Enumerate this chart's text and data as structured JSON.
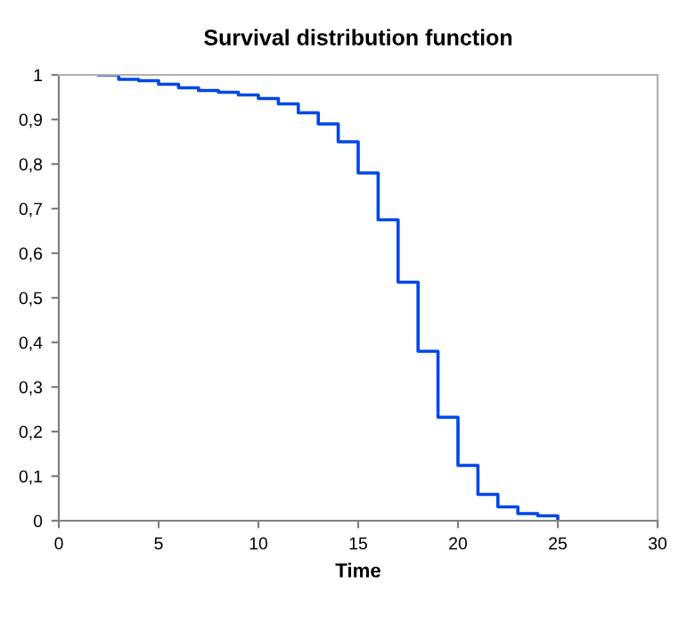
{
  "chart_data": {
    "type": "step",
    "title": "Survival distribution function",
    "xlabel": "Time",
    "x": [
      2,
      3,
      4,
      5,
      6,
      7,
      8,
      9,
      10,
      11,
      12,
      13,
      14,
      15,
      16,
      17,
      18,
      19,
      20,
      21,
      22,
      23,
      24,
      25
    ],
    "series": [
      {
        "color": "#0047e6",
        "values": [
          1.0,
          0.99,
          0.987,
          0.979,
          0.971,
          0.965,
          0.961,
          0.955,
          0.947,
          0.935,
          0.915,
          0.89,
          0.85,
          0.78,
          0.675,
          0.535,
          0.38,
          0.232,
          0.124,
          0.059,
          0.031,
          0.016,
          0.011,
          0
        ]
      }
    ],
    "xlim": [
      0,
      30
    ],
    "xticks": [
      0,
      5,
      10,
      15,
      20,
      25,
      30
    ],
    "ylim": [
      0,
      1
    ],
    "yticks": [
      0,
      {
        "value": 0.1,
        "label": "0,1"
      },
      {
        "value": 0.2,
        "label": "0,2"
      },
      {
        "value": 0.3,
        "label": "0,3"
      },
      {
        "value": 0.4,
        "label": "0,4"
      },
      {
        "value": 0.5,
        "label": "0,5"
      },
      {
        "value": 0.6,
        "label": "0,6"
      },
      {
        "value": 0.7,
        "label": "0,7"
      },
      {
        "value": 0.8,
        "label": "0,8"
      },
      {
        "value": 0.9,
        "label": "0,9"
      },
      1
    ],
    "grid": false,
    "legend": false,
    "marker": "none",
    "line_style": "solid"
  }
}
